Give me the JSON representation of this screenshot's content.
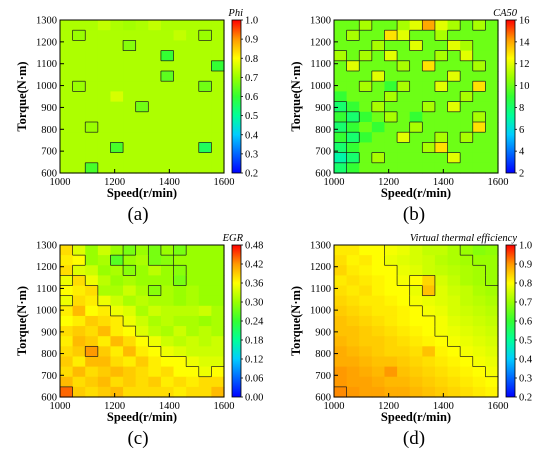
{
  "figure": {
    "panels": [
      {
        "caption": "(a)",
        "cbar_title": "Phi"
      },
      {
        "caption": "(b)",
        "cbar_title": "CA50"
      },
      {
        "caption": "(c)",
        "cbar_title": "EGR"
      },
      {
        "caption": "(d)",
        "cbar_title": "Virtual thermal efficiency"
      }
    ]
  },
  "chart_data": [
    {
      "type": "heatmap",
      "title": "Phi",
      "xlabel": "Speed(r/min)",
      "ylabel": "Torque(N·m)",
      "xlim": [
        1000,
        1600
      ],
      "ylim": [
        600,
        1300
      ],
      "x_ticks": [
        "1000",
        "1200",
        "1400",
        "1600"
      ],
      "y_ticks": [
        "600",
        "700",
        "800",
        "900",
        "1000",
        "1100",
        "1200",
        "1300"
      ],
      "colorbar": {
        "min": 0.2,
        "max": 1.0,
        "ticks": [
          "0.2",
          "0.3",
          "0.4",
          "0.5",
          "0.6",
          "0.7",
          "0.8",
          "0.9",
          "1.0"
        ]
      },
      "x": [
        1000,
        1050,
        1100,
        1150,
        1200,
        1250,
        1300,
        1350,
        1400,
        1450,
        1500,
        1550,
        1600
      ],
      "y": [
        1300,
        1250,
        1200,
        1150,
        1100,
        1050,
        1000,
        950,
        900,
        850,
        800,
        750,
        700,
        650,
        600
      ],
      "z": [
        [
          0.72,
          0.72,
          0.72,
          0.74,
          0.72,
          0.71,
          0.72,
          0.74,
          0.72,
          0.72,
          0.72,
          0.72,
          0.72
        ],
        [
          0.72,
          0.7,
          0.72,
          0.72,
          0.72,
          0.72,
          0.72,
          0.72,
          0.72,
          0.74,
          0.72,
          0.7,
          0.72
        ],
        [
          0.72,
          0.72,
          0.72,
          0.72,
          0.72,
          0.68,
          0.72,
          0.72,
          0.72,
          0.72,
          0.72,
          0.72,
          0.72
        ],
        [
          0.72,
          0.72,
          0.72,
          0.72,
          0.72,
          0.72,
          0.72,
          0.72,
          0.6,
          0.72,
          0.72,
          0.72,
          0.72
        ],
        [
          0.72,
          0.72,
          0.72,
          0.72,
          0.72,
          0.72,
          0.72,
          0.72,
          0.72,
          0.72,
          0.72,
          0.72,
          0.6
        ],
        [
          0.72,
          0.72,
          0.72,
          0.72,
          0.72,
          0.72,
          0.72,
          0.72,
          0.64,
          0.72,
          0.72,
          0.72,
          0.72
        ],
        [
          0.72,
          0.7,
          0.72,
          0.72,
          0.72,
          0.72,
          0.72,
          0.72,
          0.72,
          0.72,
          0.72,
          0.66,
          0.72
        ],
        [
          0.72,
          0.72,
          0.72,
          0.72,
          0.76,
          0.72,
          0.72,
          0.72,
          0.72,
          0.72,
          0.72,
          0.72,
          0.72
        ],
        [
          0.72,
          0.72,
          0.72,
          0.72,
          0.72,
          0.72,
          0.66,
          0.72,
          0.72,
          0.72,
          0.72,
          0.72,
          0.72
        ],
        [
          0.72,
          0.72,
          0.72,
          0.72,
          0.72,
          0.72,
          0.72,
          0.72,
          0.72,
          0.72,
          0.72,
          0.72,
          0.72
        ],
        [
          0.72,
          0.72,
          0.7,
          0.72,
          0.72,
          0.72,
          0.72,
          0.72,
          0.72,
          0.72,
          0.72,
          0.72,
          0.72
        ],
        [
          0.72,
          0.72,
          0.72,
          0.72,
          0.72,
          0.72,
          0.72,
          0.72,
          0.72,
          0.72,
          0.72,
          0.72,
          0.72
        ],
        [
          0.72,
          0.72,
          0.72,
          0.72,
          0.62,
          0.72,
          0.72,
          0.72,
          0.72,
          0.72,
          0.72,
          0.56,
          0.72
        ],
        [
          0.72,
          0.72,
          0.72,
          0.72,
          0.72,
          0.72,
          0.72,
          0.72,
          0.72,
          0.72,
          0.72,
          0.72,
          0.72
        ],
        [
          0.72,
          0.72,
          0.62,
          0.72,
          0.72,
          0.72,
          0.72,
          0.72,
          0.72,
          0.72,
          0.72,
          0.72,
          0.72
        ]
      ]
    },
    {
      "type": "heatmap",
      "title": "CA50",
      "xlabel": "Speed(r/min)",
      "ylabel": "Torque(N·m)",
      "xlim": [
        1000,
        1600
      ],
      "ylim": [
        600,
        1300
      ],
      "x_ticks": [
        "1000",
        "1200",
        "1400",
        "1600"
      ],
      "y_ticks": [
        "600",
        "700",
        "800",
        "900",
        "1000",
        "1100",
        "1200",
        "1300"
      ],
      "colorbar": {
        "min": 2,
        "max": 16,
        "ticks": [
          "2",
          "4",
          "6",
          "8",
          "10",
          "12",
          "14",
          "16"
        ]
      },
      "x": [
        1000,
        1050,
        1100,
        1150,
        1200,
        1250,
        1300,
        1350,
        1400,
        1450,
        1500,
        1550,
        1600
      ],
      "y": [
        1300,
        1250,
        1200,
        1150,
        1100,
        1050,
        1000,
        950,
        900,
        850,
        800,
        750,
        700,
        650,
        600
      ],
      "z": [
        [
          10,
          10,
          11,
          10,
          10,
          11,
          12,
          14,
          12,
          11,
          10,
          11,
          10
        ],
        [
          10,
          11,
          10,
          10,
          13,
          12,
          10,
          10,
          11,
          10,
          10,
          10,
          10
        ],
        [
          10,
          10,
          10,
          11,
          10,
          10,
          12,
          10,
          10,
          12,
          11,
          10,
          10
        ],
        [
          11,
          10,
          11,
          10,
          12,
          10,
          10,
          10,
          11,
          10,
          12,
          10,
          10
        ],
        [
          10,
          12,
          10,
          10,
          10,
          11,
          10,
          13,
          10,
          10,
          10,
          11,
          10
        ],
        [
          10,
          10,
          10,
          12,
          10,
          10,
          10,
          10,
          10,
          12,
          10,
          10,
          10
        ],
        [
          10,
          10,
          11,
          10,
          9,
          11,
          10,
          10,
          12,
          10,
          10,
          13,
          10
        ],
        [
          9,
          10,
          10,
          10,
          11,
          10,
          10,
          10,
          10,
          10,
          11,
          10,
          10
        ],
        [
          8,
          9,
          10,
          11,
          10,
          10,
          10,
          11,
          10,
          12,
          10,
          10,
          10
        ],
        [
          9,
          8,
          9,
          10,
          11,
          10,
          9,
          10,
          10,
          10,
          10,
          11,
          10
        ],
        [
          8,
          9,
          10,
          9,
          10,
          10,
          11,
          10,
          10,
          10,
          10,
          13,
          10
        ],
        [
          9,
          8,
          9,
          10,
          10,
          12,
          10,
          10,
          11,
          10,
          11,
          10,
          10
        ],
        [
          8,
          9,
          10,
          10,
          10,
          10,
          10,
          11,
          13,
          10,
          10,
          10,
          10
        ],
        [
          7,
          8,
          10,
          11,
          10,
          10,
          10,
          10,
          10,
          12,
          10,
          10,
          10
        ],
        [
          8,
          9,
          10,
          10,
          10,
          10,
          10,
          10,
          10,
          10,
          10,
          10,
          10
        ]
      ]
    },
    {
      "type": "heatmap",
      "title": "EGR",
      "xlabel": "Speed(r/min)",
      "ylabel": "Torque(N·m)",
      "xlim": [
        1000,
        1600
      ],
      "ylim": [
        600,
        1300
      ],
      "x_ticks": [
        "1000",
        "1200",
        "1400",
        "1600"
      ],
      "y_ticks": [
        "600",
        "700",
        "800",
        "900",
        "1000",
        "1100",
        "1200",
        "1300"
      ],
      "colorbar": {
        "min": 0.0,
        "max": 0.48,
        "ticks": [
          "0.00",
          "0.06",
          "0.12",
          "0.18",
          "0.24",
          "0.30",
          "0.36",
          "0.42",
          "0.48"
        ]
      },
      "x": [
        1000,
        1050,
        1100,
        1150,
        1200,
        1250,
        1300,
        1350,
        1400,
        1450,
        1500,
        1550,
        1600
      ],
      "y": [
        1300,
        1250,
        1200,
        1150,
        1100,
        1050,
        1000,
        950,
        900,
        850,
        800,
        750,
        700,
        650,
        600
      ],
      "z": [
        [
          0.38,
          0.34,
          0.3,
          0.33,
          0.3,
          0.28,
          0.3,
          0.28,
          0.3,
          0.28,
          0.3,
          0.3,
          0.3
        ],
        [
          0.37,
          0.36,
          0.3,
          0.31,
          0.26,
          0.3,
          0.31,
          0.28,
          0.29,
          0.3,
          0.3,
          0.3,
          0.3
        ],
        [
          0.38,
          0.34,
          0.33,
          0.3,
          0.31,
          0.29,
          0.3,
          0.32,
          0.3,
          0.29,
          0.3,
          0.3,
          0.3
        ],
        [
          0.35,
          0.38,
          0.35,
          0.32,
          0.3,
          0.31,
          0.3,
          0.3,
          0.3,
          0.28,
          0.3,
          0.3,
          0.3
        ],
        [
          0.36,
          0.37,
          0.38,
          0.31,
          0.31,
          0.33,
          0.31,
          0.29,
          0.31,
          0.3,
          0.31,
          0.3,
          0.3
        ],
        [
          0.35,
          0.38,
          0.37,
          0.35,
          0.33,
          0.31,
          0.32,
          0.31,
          0.31,
          0.3,
          0.31,
          0.3,
          0.3
        ],
        [
          0.37,
          0.4,
          0.36,
          0.37,
          0.35,
          0.34,
          0.31,
          0.33,
          0.32,
          0.32,
          0.32,
          0.33,
          0.31
        ],
        [
          0.36,
          0.37,
          0.39,
          0.38,
          0.37,
          0.35,
          0.33,
          0.31,
          0.32,
          0.31,
          0.31,
          0.3,
          0.31
        ],
        [
          0.38,
          0.39,
          0.38,
          0.4,
          0.37,
          0.36,
          0.34,
          0.32,
          0.31,
          0.33,
          0.31,
          0.32,
          0.31
        ],
        [
          0.37,
          0.4,
          0.39,
          0.37,
          0.4,
          0.38,
          0.36,
          0.35,
          0.33,
          0.32,
          0.33,
          0.32,
          0.33
        ],
        [
          0.38,
          0.39,
          0.42,
          0.39,
          0.37,
          0.4,
          0.37,
          0.36,
          0.35,
          0.34,
          0.33,
          0.33,
          0.33
        ],
        [
          0.39,
          0.37,
          0.4,
          0.4,
          0.38,
          0.37,
          0.39,
          0.37,
          0.36,
          0.36,
          0.35,
          0.34,
          0.34
        ],
        [
          0.38,
          0.4,
          0.38,
          0.39,
          0.4,
          0.39,
          0.38,
          0.37,
          0.38,
          0.36,
          0.36,
          0.35,
          0.36
        ],
        [
          0.4,
          0.38,
          0.39,
          0.4,
          0.38,
          0.39,
          0.38,
          0.39,
          0.37,
          0.38,
          0.37,
          0.38,
          0.38
        ],
        [
          0.44,
          0.39,
          0.38,
          0.39,
          0.4,
          0.38,
          0.38,
          0.38,
          0.38,
          0.37,
          0.38,
          0.38,
          0.4
        ]
      ]
    },
    {
      "type": "heatmap",
      "title": "Virtual thermal efficiency",
      "xlabel": "Speed(r/min)",
      "ylabel": "Torque(N·m)",
      "xlim": [
        1000,
        1600
      ],
      "ylim": [
        600,
        1300
      ],
      "x_ticks": [
        "1000",
        "1200",
        "1400",
        "1600"
      ],
      "y_ticks": [
        "600",
        "700",
        "800",
        "900",
        "1000",
        "1100",
        "1200",
        "1300"
      ],
      "colorbar": {
        "min": 0.2,
        "max": 1.0,
        "ticks": [
          "0.2",
          "0.3",
          "0.4",
          "0.5",
          "0.6",
          "0.7",
          "0.8",
          "0.9",
          "1.0"
        ]
      },
      "x": [
        1000,
        1050,
        1100,
        1150,
        1200,
        1250,
        1300,
        1350,
        1400,
        1450,
        1500,
        1550,
        1600
      ],
      "y": [
        1300,
        1250,
        1200,
        1150,
        1100,
        1050,
        1000,
        950,
        900,
        850,
        800,
        750,
        700,
        650,
        600
      ],
      "z": [
        [
          0.82,
          0.82,
          0.8,
          0.8,
          0.79,
          0.78,
          0.76,
          0.74,
          0.74,
          0.72,
          0.7,
          0.68,
          0.69
        ],
        [
          0.83,
          0.81,
          0.82,
          0.8,
          0.78,
          0.77,
          0.76,
          0.75,
          0.73,
          0.72,
          0.71,
          0.7,
          0.7
        ],
        [
          0.84,
          0.82,
          0.81,
          0.8,
          0.8,
          0.78,
          0.77,
          0.75,
          0.74,
          0.73,
          0.72,
          0.71,
          0.7
        ],
        [
          0.82,
          0.83,
          0.82,
          0.81,
          0.8,
          0.79,
          0.8,
          0.84,
          0.76,
          0.74,
          0.72,
          0.71,
          0.7
        ],
        [
          0.83,
          0.82,
          0.83,
          0.81,
          0.8,
          0.8,
          0.78,
          0.86,
          0.77,
          0.75,
          0.74,
          0.72,
          0.71
        ],
        [
          0.84,
          0.83,
          0.82,
          0.82,
          0.81,
          0.8,
          0.79,
          0.78,
          0.77,
          0.76,
          0.74,
          0.73,
          0.72
        ],
        [
          0.85,
          0.84,
          0.83,
          0.82,
          0.82,
          0.81,
          0.8,
          0.79,
          0.78,
          0.76,
          0.75,
          0.74,
          0.73
        ],
        [
          0.86,
          0.85,
          0.84,
          0.83,
          0.82,
          0.81,
          0.8,
          0.8,
          0.79,
          0.77,
          0.76,
          0.75,
          0.74
        ],
        [
          0.86,
          0.86,
          0.85,
          0.84,
          0.83,
          0.82,
          0.81,
          0.8,
          0.79,
          0.78,
          0.77,
          0.76,
          0.75
        ],
        [
          0.87,
          0.86,
          0.85,
          0.85,
          0.84,
          0.83,
          0.82,
          0.81,
          0.8,
          0.79,
          0.78,
          0.77,
          0.76
        ],
        [
          0.88,
          0.87,
          0.86,
          0.85,
          0.84,
          0.84,
          0.83,
          0.86,
          0.81,
          0.8,
          0.79,
          0.78,
          0.77
        ],
        [
          0.88,
          0.88,
          0.87,
          0.86,
          0.86,
          0.85,
          0.84,
          0.83,
          0.82,
          0.81,
          0.8,
          0.79,
          0.78
        ],
        [
          0.9,
          0.89,
          0.88,
          0.87,
          0.9,
          0.86,
          0.85,
          0.84,
          0.83,
          0.82,
          0.81,
          0.8,
          0.79
        ],
        [
          0.9,
          0.89,
          0.89,
          0.88,
          0.87,
          0.87,
          0.86,
          0.85,
          0.84,
          0.83,
          0.82,
          0.81,
          0.8
        ],
        [
          0.91,
          0.9,
          0.89,
          0.89,
          0.88,
          0.88,
          0.87,
          0.86,
          0.85,
          0.84,
          0.83,
          0.82,
          0.81
        ]
      ]
    }
  ]
}
